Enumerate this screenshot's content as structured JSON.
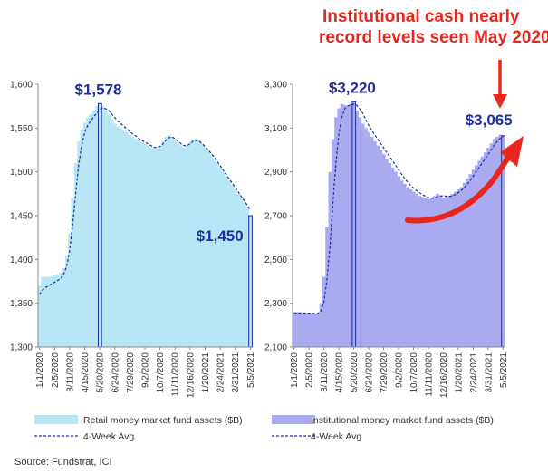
{
  "annotation": {
    "line1": "Institutional cash nearly",
    "line2": "record levels seen May 2020",
    "color": "#e8261e"
  },
  "source": "Source: Fundstrat, ICI",
  "chart_data": [
    {
      "type": "area",
      "name": "retail",
      "ylim": [
        1300,
        1600
      ],
      "yticks": [
        "1,300",
        "1,350",
        "1,400",
        "1,450",
        "1,500",
        "1,550",
        "1,600"
      ],
      "ytick_values": [
        1300,
        1350,
        1400,
        1450,
        1500,
        1550,
        1600
      ],
      "x_tick_labels": [
        "1/1/2020",
        "2/5/2020",
        "3/11/2020",
        "4/15/2020",
        "5/20/2020",
        "6/24/2020",
        "7/29/2020",
        "9/2/2020",
        "10/7/2020",
        "11/11/2020",
        "12/16/2020",
        "1/20/2021",
        "2/24/2021",
        "3/31/2021",
        "5/5/2021"
      ],
      "callouts": [
        {
          "label": "$1,578",
          "week": 20,
          "value": 1578
        },
        {
          "label": "$1,450",
          "week": 70,
          "value": 1450
        }
      ],
      "fill_color": "#b7e6f5",
      "avg_color": "#1f2f9e",
      "legend": {
        "series": "Retail money market fund assets ($B)",
        "avg": "4-Week Avg"
      },
      "weeks": 71,
      "values": [
        1370,
        1380,
        1380,
        1380,
        1381,
        1382,
        1383,
        1385,
        1390,
        1405,
        1430,
        1470,
        1510,
        1535,
        1548,
        1556,
        1562,
        1566,
        1570,
        1575,
        1578,
        1575,
        1570,
        1565,
        1560,
        1555,
        1552,
        1550,
        1548,
        1545,
        1542,
        1540,
        1538,
        1536,
        1534,
        1532,
        1530,
        1528,
        1527,
        1527,
        1530,
        1535,
        1540,
        1542,
        1540,
        1536,
        1532,
        1530,
        1528,
        1530,
        1534,
        1537,
        1538,
        1536,
        1532,
        1528,
        1524,
        1520,
        1515,
        1510,
        1505,
        1500,
        1495,
        1490,
        1485,
        1480,
        1475,
        1470,
        1465,
        1460,
        1450
      ],
      "avg": [
        1360,
        1365,
        1368,
        1370,
        1372,
        1374,
        1376,
        1378,
        1383,
        1392,
        1410,
        1440,
        1475,
        1508,
        1530,
        1545,
        1553,
        1558,
        1563,
        1567,
        1571,
        1573,
        1572,
        1570,
        1566,
        1562,
        1558,
        1555,
        1552,
        1549,
        1546,
        1543,
        1541,
        1538,
        1536,
        1534,
        1532,
        1530,
        1528,
        1528,
        1529,
        1532,
        1536,
        1539,
        1540,
        1538,
        1535,
        1532,
        1530,
        1530,
        1532,
        1535,
        1536,
        1535,
        1532,
        1529,
        1525,
        1521,
        1517,
        1512,
        1507,
        1502,
        1497,
        1492,
        1487,
        1482,
        1477,
        1472,
        1467,
        1462,
        1456
      ]
    },
    {
      "type": "area",
      "name": "institutional",
      "ylim": [
        2100,
        3300
      ],
      "yticks": [
        "2,100",
        "2,300",
        "2,500",
        "2,700",
        "2,900",
        "3,100",
        "3,300"
      ],
      "ytick_values": [
        2100,
        2300,
        2500,
        2700,
        2900,
        3100,
        3300
      ],
      "x_tick_labels": [
        "1/1/2020",
        "2/5/2020",
        "3/11/2020",
        "4/15/2020",
        "5/20/2020",
        "6/24/2020",
        "7/29/2020",
        "9/2/2020",
        "10/7/2020",
        "11/11/2020",
        "12/16/2020",
        "1/20/2021",
        "2/24/2021",
        "3/31/2021",
        "5/5/2021"
      ],
      "callouts": [
        {
          "label": "$3,220",
          "week": 20,
          "value": 3220
        },
        {
          "label": "$3,065",
          "week": 70,
          "value": 3065
        }
      ],
      "fill_color": "#aaaaf0",
      "avg_color": "#1f2f9e",
      "legend": {
        "series": "Institutional money market fund assets ($B)",
        "avg": "4-Week Avg"
      },
      "weeks": 71,
      "values": [
        2260,
        2260,
        2258,
        2256,
        2255,
        2254,
        2252,
        2250,
        2255,
        2300,
        2420,
        2650,
        2900,
        3050,
        3150,
        3190,
        3210,
        3205,
        3200,
        3210,
        3220,
        3180,
        3150,
        3120,
        3100,
        3080,
        3060,
        3040,
        3020,
        3000,
        2980,
        2960,
        2940,
        2920,
        2900,
        2880,
        2860,
        2845,
        2830,
        2820,
        2810,
        2800,
        2790,
        2785,
        2780,
        2775,
        2780,
        2790,
        2800,
        2790,
        2780,
        2785,
        2790,
        2800,
        2810,
        2820,
        2830,
        2850,
        2870,
        2890,
        2910,
        2930,
        2950,
        2970,
        2990,
        3010,
        3030,
        3050,
        3060,
        3070,
        3065
      ],
      "avg": [
        2255,
        2255,
        2256,
        2256,
        2255,
        2255,
        2254,
        2253,
        2253,
        2265,
        2306,
        2406,
        2555,
        2755,
        2938,
        3073,
        3150,
        3189,
        3201,
        3206,
        3209,
        3204,
        3188,
        3168,
        3138,
        3113,
        3090,
        3070,
        3050,
        3030,
        3010,
        2990,
        2970,
        2950,
        2930,
        2910,
        2890,
        2871,
        2854,
        2839,
        2826,
        2815,
        2805,
        2796,
        2789,
        2782,
        2780,
        2781,
        2786,
        2790,
        2790,
        2789,
        2789,
        2789,
        2796,
        2805,
        2815,
        2828,
        2843,
        2860,
        2880,
        2900,
        2920,
        2940,
        2960,
        2980,
        3000,
        3020,
        3038,
        3053,
        3061
      ]
    }
  ]
}
